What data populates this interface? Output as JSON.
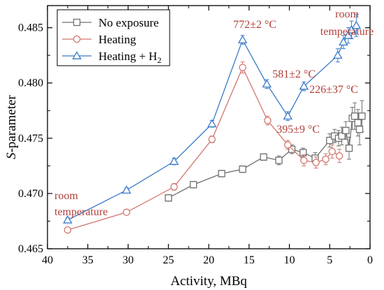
{
  "chart_data": {
    "type": "line",
    "title": "",
    "xlabel": "Activity, MBq",
    "ylabel": "S-parameter",
    "xlim": [
      40,
      0
    ],
    "ylim": [
      0.465,
      0.487
    ],
    "x_ticks": [
      40,
      35,
      30,
      25,
      20,
      15,
      10,
      5,
      0
    ],
    "y_ticks": [
      0.465,
      0.47,
      0.475,
      0.48,
      0.485
    ],
    "x_tick_labels": [
      "40",
      "35",
      "30",
      "25",
      "20",
      "15",
      "10",
      "5",
      "0"
    ],
    "y_tick_labels": [
      "0.465",
      "0.470",
      "0.475",
      "0.480",
      "0.485"
    ],
    "legend": {
      "placement": "top-left",
      "entries": [
        "No exposure",
        "Heating",
        "Heating + H2"
      ]
    },
    "grid": false,
    "series": [
      {
        "name": "No exposure",
        "color": "#707070",
        "marker": "square",
        "x": [
          25.0,
          21.9,
          18.4,
          15.8,
          13.2,
          11.3,
          9.7,
          8.3,
          6.8,
          5.0,
          4.4,
          3.9,
          3.5,
          3.0,
          2.6,
          2.2,
          1.9,
          1.5,
          1.3,
          1.0
        ],
        "y": [
          0.4696,
          0.4708,
          0.4718,
          0.4722,
          0.4733,
          0.473,
          0.474,
          0.4737,
          0.4732,
          0.4748,
          0.4752,
          0.475,
          0.4752,
          0.4757,
          0.4741,
          0.4768,
          0.477,
          0.4764,
          0.4758,
          0.477
        ],
        "err": [
          0.0003,
          0.0003,
          0.0003,
          0.0003,
          0.0003,
          0.0004,
          0.0004,
          0.0004,
          0.0005,
          0.0006,
          0.0006,
          0.0007,
          0.0008,
          0.0008,
          0.001,
          0.001,
          0.0012,
          0.0012,
          0.0014,
          0.0014
        ]
      },
      {
        "name": "Heating",
        "color": "#d2776f",
        "marker": "circle",
        "x": [
          37.5,
          30.2,
          24.3,
          19.6,
          15.8,
          12.7,
          10.2,
          8.2,
          6.7,
          5.5,
          4.7,
          3.8
        ],
        "y": [
          0.4667,
          0.4683,
          0.4706,
          0.4749,
          0.4814,
          0.4766,
          0.4744,
          0.473,
          0.4728,
          0.4731,
          0.4738,
          0.4734
        ],
        "err": [
          0.0002,
          0.0002,
          0.0003,
          0.0003,
          0.0005,
          0.0004,
          0.0004,
          0.0005,
          0.0005,
          0.0005,
          0.0006,
          0.0006
        ]
      },
      {
        "name": "Heating + H2",
        "color": "#3a7bc8",
        "marker": "triangle",
        "x": [
          37.5,
          30.2,
          24.3,
          19.6,
          15.8,
          12.8,
          10.2,
          8.2,
          4.0,
          3.3,
          2.7,
          2.3,
          1.7
        ],
        "y": [
          0.4676,
          0.4703,
          0.4729,
          0.4763,
          0.4839,
          0.4799,
          0.477,
          0.4797,
          0.4825,
          0.4837,
          0.4843,
          0.4848,
          0.4852
        ],
        "err": [
          0.0002,
          0.0002,
          0.0003,
          0.0003,
          0.0004,
          0.0004,
          0.0004,
          0.0004,
          0.0006,
          0.0006,
          0.0007,
          0.0008,
          0.001
        ]
      }
    ],
    "annotations": [
      {
        "text": "772±2 °C"
      },
      {
        "text": "581±2 °C"
      },
      {
        "text": "226±37 °C"
      },
      {
        "text": "395±9 °C"
      },
      {
        "text": "room"
      },
      {
        "text": "temperature"
      },
      {
        "text": "room"
      },
      {
        "text": "temperature"
      }
    ]
  }
}
